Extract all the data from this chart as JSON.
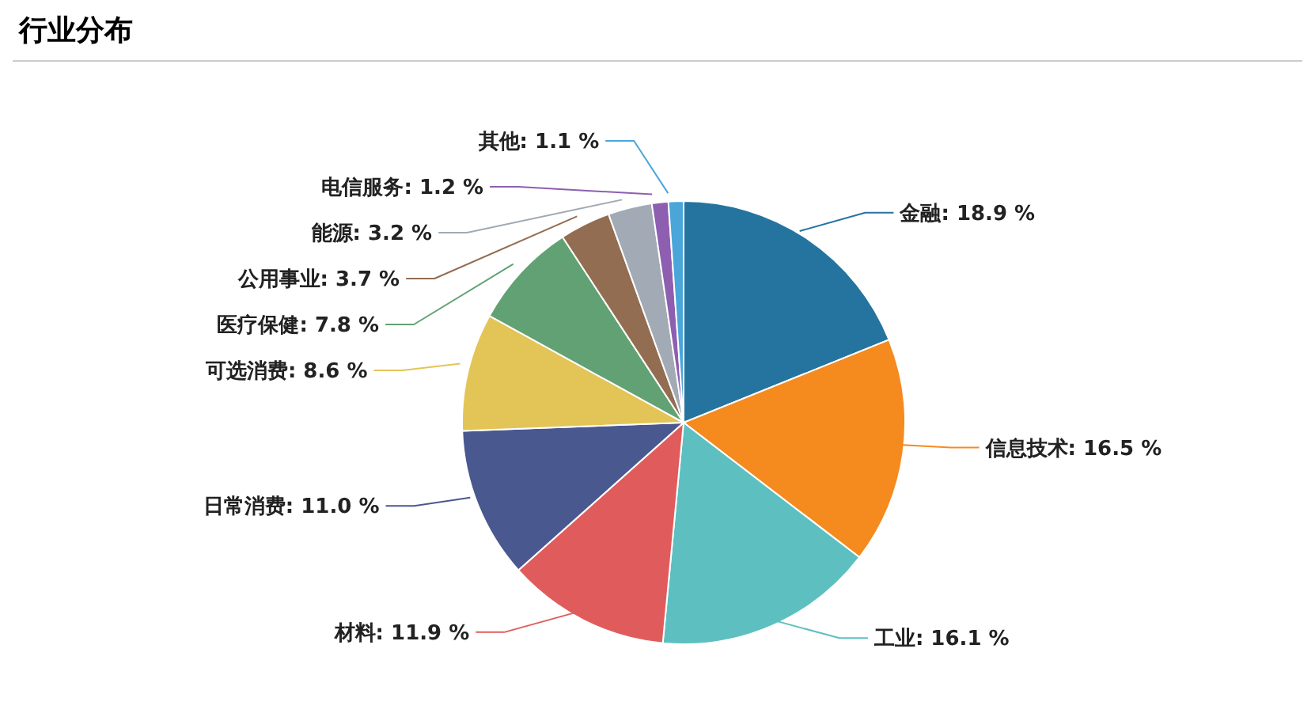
{
  "chart_data": {
    "type": "pie",
    "title": "行业分布",
    "categories": [
      "金融",
      "信息技术",
      "工业",
      "材料",
      "日常消费",
      "可选消费",
      "医疗保健",
      "公用事业",
      "能源",
      "电信服务",
      "其他"
    ],
    "values": [
      18.9,
      16.5,
      16.1,
      11.9,
      11.0,
      8.6,
      7.8,
      3.7,
      3.2,
      1.2,
      1.1
    ],
    "value_labels": [
      "18.9 %",
      "16.5 %",
      "16.1 %",
      "11.9 %",
      "11.0 %",
      "8.6 %",
      "7.8 %",
      "3.7 %",
      "3.2 %",
      "1.2 %",
      "1.1 %"
    ],
    "colors": [
      "#25749f",
      "#f58a1f",
      "#5ebfc1",
      "#e05c5c",
      "#4a5890",
      "#e3c457",
      "#62a173",
      "#936d52",
      "#a1aab5",
      "#8e5fb0",
      "#4aa6d9"
    ],
    "legend": false
  }
}
